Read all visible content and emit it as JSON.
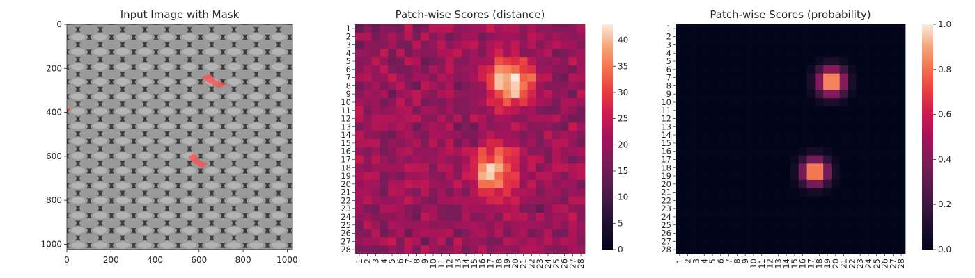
{
  "panels": {
    "image_title": "Input Image with Mask",
    "distance_title": "Patch-wise Scores (distance)",
    "probability_title": "Patch-wise Scores (probability)"
  },
  "chart_data": [
    {
      "type": "image",
      "title": "Input Image with Mask",
      "description_content": "grayscale metal grid texture with red anomaly mask overlay",
      "xlim": [
        0,
        1024
      ],
      "ylim": [
        1024,
        0
      ],
      "xticks": [
        0,
        200,
        400,
        600,
        800,
        1000
      ],
      "yticks": [
        0,
        200,
        400,
        600,
        800,
        1000
      ],
      "mask_color": "#ff4d4d",
      "mask_regions": [
        {
          "x_range": [
            610,
            730
          ],
          "y_range": [
            225,
            290
          ]
        },
        {
          "x_range": [
            550,
            640
          ],
          "y_range": [
            585,
            655
          ]
        },
        {
          "x_range": [
            0,
            14
          ],
          "y_range": [
            375,
            398
          ]
        }
      ]
    },
    {
      "type": "heatmap",
      "title": "Patch-wise Scores (distance)",
      "rows": 28,
      "cols": 28,
      "x_categories": [
        "1",
        "2",
        "3",
        "4",
        "5",
        "6",
        "7",
        "8",
        "9",
        "10",
        "11",
        "12",
        "13",
        "14",
        "15",
        "16",
        "17",
        "18",
        "19",
        "20",
        "21",
        "22",
        "23",
        "24",
        "25",
        "26",
        "27",
        "28"
      ],
      "y_categories": [
        "1",
        "2",
        "3",
        "4",
        "5",
        "6",
        "7",
        "8",
        "9",
        "10",
        "11",
        "12",
        "13",
        "14",
        "15",
        "16",
        "17",
        "18",
        "19",
        "20",
        "21",
        "22",
        "23",
        "24",
        "25",
        "26",
        "27",
        "28"
      ],
      "colorbar_range": [
        0,
        43
      ],
      "colorbar_ticks": [
        0,
        5,
        10,
        15,
        20,
        25,
        30,
        35,
        40
      ],
      "background_level": 20,
      "hotspots": [
        {
          "row": 7.5,
          "col": 19.5,
          "peak": 43,
          "radius": 2.4
        },
        {
          "row": 18.5,
          "col": 17.5,
          "peak": 40,
          "radius": 2.4
        }
      ],
      "colormap": "rocket"
    },
    {
      "type": "heatmap",
      "title": "Patch-wise Scores (probability)",
      "rows": 28,
      "cols": 28,
      "x_categories": [
        "1",
        "2",
        "3",
        "4",
        "5",
        "6",
        "7",
        "8",
        "9",
        "10",
        "11",
        "12",
        "13",
        "14",
        "15",
        "16",
        "17",
        "18",
        "19",
        "20",
        "21",
        "22",
        "23",
        "24",
        "25",
        "26",
        "27",
        "28"
      ],
      "y_categories": [
        "1",
        "2",
        "3",
        "4",
        "5",
        "6",
        "7",
        "8",
        "9",
        "10",
        "11",
        "12",
        "13",
        "14",
        "15",
        "16",
        "17",
        "18",
        "19",
        "20",
        "21",
        "22",
        "23",
        "24",
        "25",
        "26",
        "27",
        "28"
      ],
      "colorbar_range": [
        0.0,
        1.0
      ],
      "colorbar_ticks": [
        "0.0",
        "0.2",
        "0.4",
        "0.6",
        "0.8",
        "1.0"
      ],
      "background_level": 0.0,
      "hotspots": [
        {
          "row": 7.5,
          "col": 19.5,
          "peak": 1.0,
          "radius": 1.6
        },
        {
          "row": 18.5,
          "col": 17.5,
          "peak": 1.0,
          "radius": 1.5
        }
      ],
      "colormap": "rocket"
    }
  ]
}
